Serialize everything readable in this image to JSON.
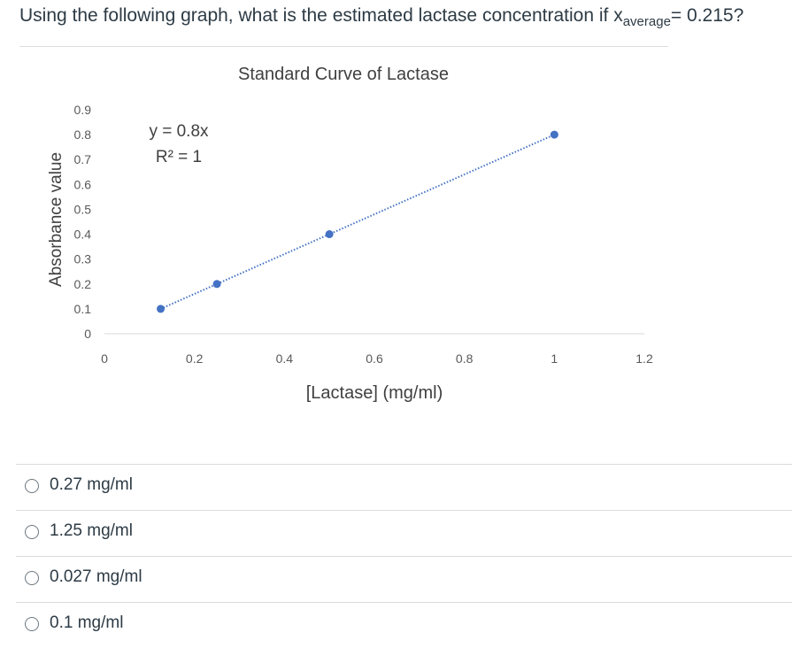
{
  "question": {
    "prefix": "Using the following graph, what is the estimated lactase concentration if ",
    "var_main": "x",
    "var_sub": "average",
    "suffix": "= 0.215?"
  },
  "chart_data": {
    "type": "scatter",
    "title": "Standard Curve of Lactase",
    "xlabel": "[Lactase] (mg/ml)",
    "ylabel": "Absorbance value",
    "xlim": [
      0,
      1.2
    ],
    "ylim": [
      0,
      0.9
    ],
    "x_ticks": [
      "0",
      "0.2",
      "0.4",
      "0.6",
      "0.8",
      "1",
      "1.2"
    ],
    "y_ticks": [
      "0",
      "0.1",
      "0.2",
      "0.3",
      "0.4",
      "0.5",
      "0.6",
      "0.7",
      "0.8",
      "0.9"
    ],
    "series": [
      {
        "x": [
          0.125,
          0.25,
          0.5,
          1.0
        ],
        "y": [
          0.1,
          0.2,
          0.4,
          0.8
        ],
        "color": "#4472c4",
        "trendline": {
          "type": "linear",
          "style": "dotted",
          "slope": 0.8,
          "intercept": 0
        }
      }
    ],
    "annotations": {
      "equation": "y = 0.8x",
      "r_squared": "R² = 1"
    },
    "grid": false
  },
  "answers": [
    {
      "label": "0.27 mg/ml"
    },
    {
      "label": "1.25 mg/ml"
    },
    {
      "label": "0.027 mg/ml"
    },
    {
      "label": "0.1 mg/ml"
    }
  ]
}
